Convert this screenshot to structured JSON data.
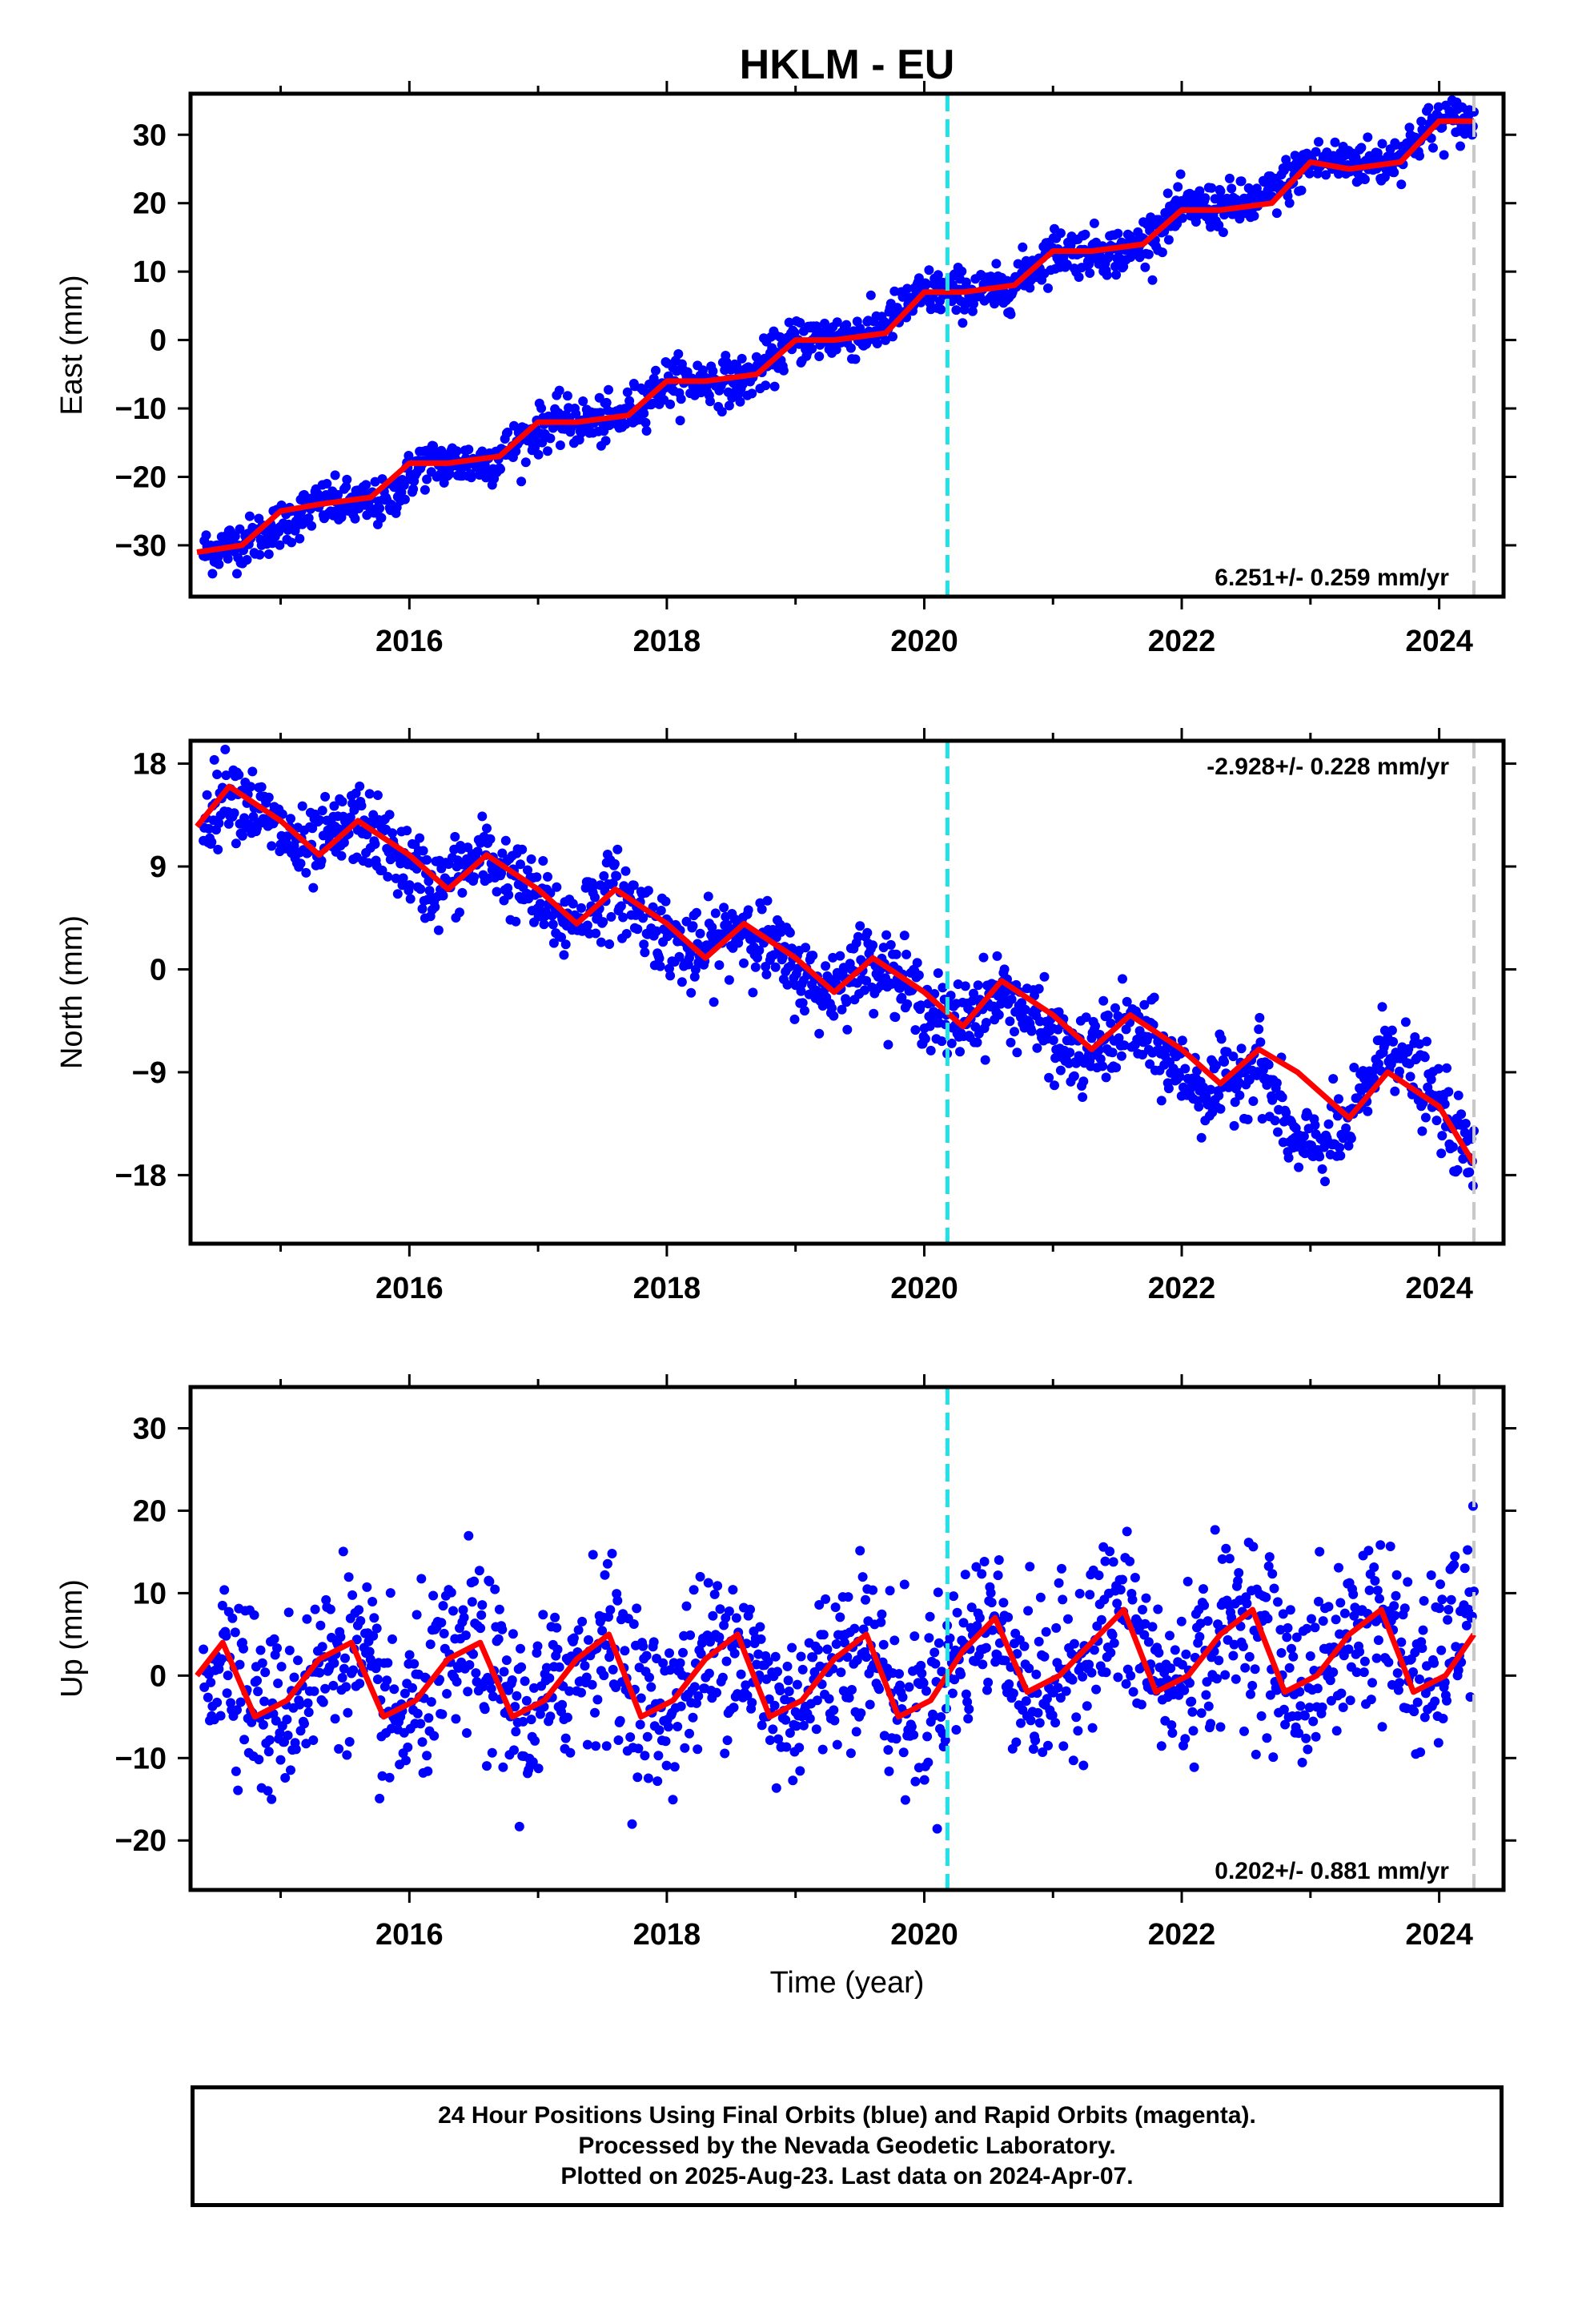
{
  "figure": {
    "title": "HKLM - EU",
    "xlabel": "Time (year)",
    "caption": [
      "24 Hour Positions Using Final Orbits (blue) and Rapid Orbits (magenta).",
      "Processed by the Nevada Geodetic Laboratory.",
      "Plotted on 2025-Aug-23. Last data on 2024-Apr-07."
    ],
    "colors": {
      "data_points": "#0000ff",
      "model_line": "#ff0000",
      "equipment_change": "#22e0e8",
      "last_data": "#c8c8c8"
    }
  },
  "chart_data": [
    {
      "type": "scatter",
      "ylabel": "East (mm)",
      "rate_label": "6.251+/- 0.259 mm/yr",
      "xlim": [
        2014.3,
        2024.5
      ],
      "ylim": [
        -37.5,
        36
      ],
      "x_ticks": [
        2016,
        2018,
        2020,
        2022,
        2024
      ],
      "y_ticks": [
        30,
        20,
        10,
        0,
        -10,
        -20,
        -30
      ],
      "vertical_lines": {
        "cyan_dashed": 2020.18,
        "gray_dashed": 2024.27
      },
      "series": [
        {
          "name": "Final Orbits (blue)",
          "kind": "daily positions",
          "x": [
            2014.4,
            2014.8,
            2015.3,
            2015.8,
            2016.1,
            2016.6,
            2017.1,
            2017.6,
            2018.0,
            2018.6,
            2019.0,
            2019.6,
            2020.0,
            2020.6,
            2021.0,
            2021.6,
            2022.0,
            2022.6,
            2023.0,
            2023.6,
            2024.0,
            2024.27
          ],
          "y": [
            -31,
            -29,
            -24,
            -24,
            -18,
            -18,
            -12,
            -12,
            -6,
            -6,
            0,
            1,
            7,
            7,
            13,
            13,
            19,
            20,
            26,
            26,
            32,
            32
          ]
        },
        {
          "name": "model",
          "kind": "fitted",
          "x": [
            2014.35,
            2014.7,
            2015.0,
            2015.3,
            2015.7,
            2016.0,
            2016.3,
            2016.7,
            2017.0,
            2017.3,
            2017.7,
            2018.0,
            2018.3,
            2018.7,
            2019.0,
            2019.3,
            2019.7,
            2020.0,
            2020.3,
            2020.7,
            2021.0,
            2021.3,
            2021.7,
            2022.0,
            2022.3,
            2022.7,
            2023.0,
            2023.3,
            2023.7,
            2024.0,
            2024.27
          ],
          "y": [
            -31,
            -30,
            -25,
            -24,
            -23,
            -18,
            -18,
            -17,
            -12,
            -12,
            -11,
            -6,
            -6,
            -5,
            0,
            0,
            1,
            7,
            7,
            8,
            13,
            13,
            14,
            19,
            19,
            20,
            26,
            25,
            26,
            32,
            32
          ]
        }
      ]
    },
    {
      "type": "scatter",
      "ylabel": "North (mm)",
      "rate_label": "-2.928+/- 0.228 mm/yr",
      "xlim": [
        2014.3,
        2024.5
      ],
      "ylim": [
        -24,
        20
      ],
      "x_ticks": [
        2016,
        2018,
        2020,
        2022,
        2024
      ],
      "y_ticks": [
        18,
        9,
        0,
        -9,
        -18
      ],
      "vertical_lines": {
        "cyan_dashed": 2020.18,
        "gray_dashed": 2024.27
      },
      "series": [
        {
          "name": "Final Orbits (blue)",
          "kind": "daily positions",
          "x": [
            2014.4,
            2014.6,
            2015.2,
            2015.6,
            2016.2,
            2016.6,
            2017.2,
            2017.6,
            2018.2,
            2018.6,
            2019.2,
            2019.6,
            2020.2,
            2020.6,
            2021.2,
            2021.6,
            2022.2,
            2022.6,
            2022.9,
            2023.3,
            2023.6,
            2024.0,
            2024.27
          ],
          "y": [
            13,
            16,
            10,
            13,
            7,
            10,
            4,
            7,
            1,
            4,
            -2,
            1,
            -5,
            -2,
            -8,
            -5,
            -11,
            -8,
            -16,
            -14,
            -6,
            -12,
            -17
          ]
        },
        {
          "name": "model",
          "kind": "fitted",
          "x": [
            2014.35,
            2014.6,
            2015.0,
            2015.3,
            2015.6,
            2016.0,
            2016.3,
            2016.6,
            2017.0,
            2017.3,
            2017.6,
            2018.0,
            2018.3,
            2018.6,
            2019.0,
            2019.3,
            2019.6,
            2020.0,
            2020.3,
            2020.6,
            2021.0,
            2021.3,
            2021.6,
            2022.0,
            2022.3,
            2022.6,
            2022.9,
            2023.3,
            2023.6,
            2024.0,
            2024.27
          ],
          "y": [
            12.5,
            16,
            13,
            10,
            13,
            10,
            7,
            10,
            7,
            4,
            7,
            4,
            1,
            4,
            1,
            -2,
            1,
            -2,
            -5,
            -1,
            -4,
            -7,
            -4,
            -7,
            -10,
            -7,
            -9,
            -13,
            -9,
            -12,
            -17
          ]
        }
      ]
    },
    {
      "type": "scatter",
      "ylabel": "Up (mm)",
      "rate_label": "0.202+/- 0.881 mm/yr",
      "xlim": [
        2014.3,
        2024.5
      ],
      "ylim": [
        -26,
        35
      ],
      "x_ticks": [
        2016,
        2018,
        2020,
        2022,
        2024
      ],
      "y_ticks": [
        30,
        20,
        10,
        0,
        -10,
        -20
      ],
      "vertical_lines": {
        "cyan_dashed": 2020.18,
        "gray_dashed": 2024.27
      },
      "series": [
        {
          "name": "Final Orbits (blue)",
          "kind": "daily positions",
          "x": [
            2014.4,
            2014.6,
            2014.9,
            2015.5,
            2015.9,
            2016.5,
            2016.9,
            2017.5,
            2017.9,
            2018.5,
            2018.9,
            2019.5,
            2019.9,
            2020.5,
            2020.9,
            2021.5,
            2021.9,
            2022.5,
            2022.9,
            2023.5,
            2023.9,
            2024.27
          ],
          "y": [
            0,
            4,
            -6,
            4,
            -6,
            4,
            -6,
            5,
            -5,
            5,
            -5,
            5,
            -5,
            7,
            -3,
            8,
            -2,
            8,
            -2,
            8,
            -2,
            10
          ]
        },
        {
          "name": "model",
          "kind": "fitted",
          "x": [
            2014.35,
            2014.55,
            2014.8,
            2015.05,
            2015.3,
            2015.55,
            2015.8,
            2016.05,
            2016.3,
            2016.55,
            2016.8,
            2017.05,
            2017.3,
            2017.55,
            2017.8,
            2018.05,
            2018.3,
            2018.55,
            2018.8,
            2019.05,
            2019.3,
            2019.55,
            2019.8,
            2020.05,
            2020.3,
            2020.55,
            2020.8,
            2021.05,
            2021.3,
            2021.55,
            2021.8,
            2022.05,
            2022.3,
            2022.55,
            2022.8,
            2023.05,
            2023.3,
            2023.55,
            2023.8,
            2024.05,
            2024.27
          ],
          "y": [
            0,
            4,
            -5,
            -3,
            2,
            4,
            -5,
            -3,
            2,
            4,
            -5,
            -3,
            2,
            5,
            -5,
            -3,
            2,
            5,
            -5,
            -3,
            2,
            5,
            -5,
            -3,
            3,
            7,
            -2,
            0,
            4,
            8,
            -2,
            0,
            5,
            8,
            -2,
            0,
            5,
            8,
            -2,
            0,
            5
          ]
        }
      ]
    }
  ]
}
